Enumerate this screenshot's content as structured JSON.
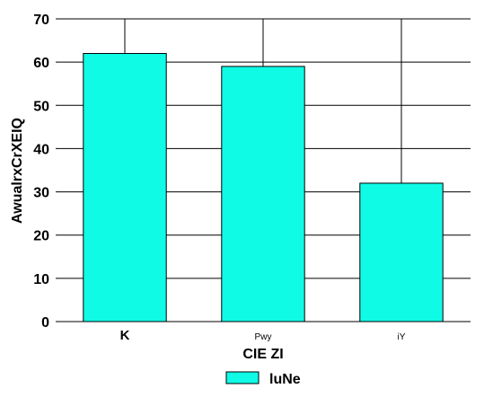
{
  "chart_data": {
    "type": "bar",
    "categories": [
      "K",
      "Pwy",
      "iY"
    ],
    "series": [
      {
        "name": "luNe",
        "values": [
          62,
          59,
          32
        ]
      }
    ],
    "xlabel": "CIE ZI",
    "ylabel": "AwualrxCrXEIQ",
    "ylim": [
      0,
      70
    ],
    "yticks": [
      0,
      10,
      20,
      30,
      40,
      50,
      60,
      70
    ],
    "grid": {
      "horizontal": true,
      "vertical": true
    },
    "legend_position": "bottom-center",
    "colors": {
      "bar": "#10fbe6",
      "edge": "#000000",
      "grid": "#000000"
    }
  }
}
